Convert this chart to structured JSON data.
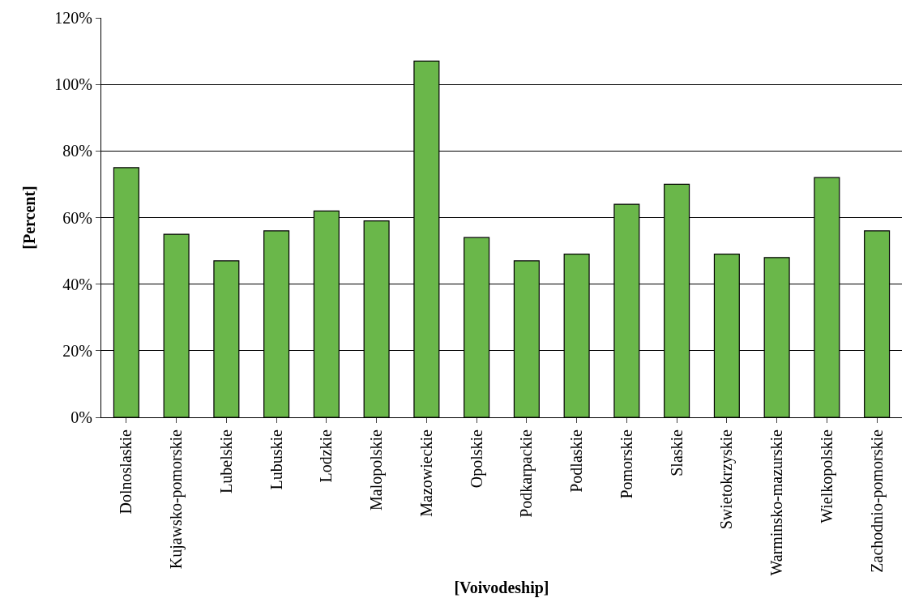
{
  "chart_data": {
    "type": "bar",
    "xlabel": "[Voivodeship]",
    "ylabel": "[Percent]",
    "categories": [
      "Dolnoslaskie",
      "Kujawsko-pomorskie",
      "Lubelskie",
      "Lubuskie",
      "Lodzkie",
      "Malopolskie",
      "Mazowieckie",
      "Opolskie",
      "Podkarpackie",
      "Podlaskie",
      "Pomorskie",
      "Slaskie",
      "Swietokrzyskie",
      "Warminsko-mazurskie",
      "Wielkopolskie",
      "Zachodnio-pomorskie"
    ],
    "values": [
      75,
      55,
      47,
      56,
      62,
      59,
      107,
      54,
      47,
      49,
      64,
      70,
      49,
      48,
      72,
      56
    ],
    "color": "#6ab74a",
    "ylim": [
      0,
      120
    ],
    "yticks": [
      {
        "value": 0,
        "label": "0%"
      },
      {
        "value": 20,
        "label": "20%"
      },
      {
        "value": 40,
        "label": "40%"
      },
      {
        "value": 60,
        "label": "60%"
      },
      {
        "value": 80,
        "label": "80%"
      },
      {
        "value": 100,
        "label": "100%"
      },
      {
        "value": 120,
        "label": "120%"
      }
    ],
    "grid": "y"
  }
}
